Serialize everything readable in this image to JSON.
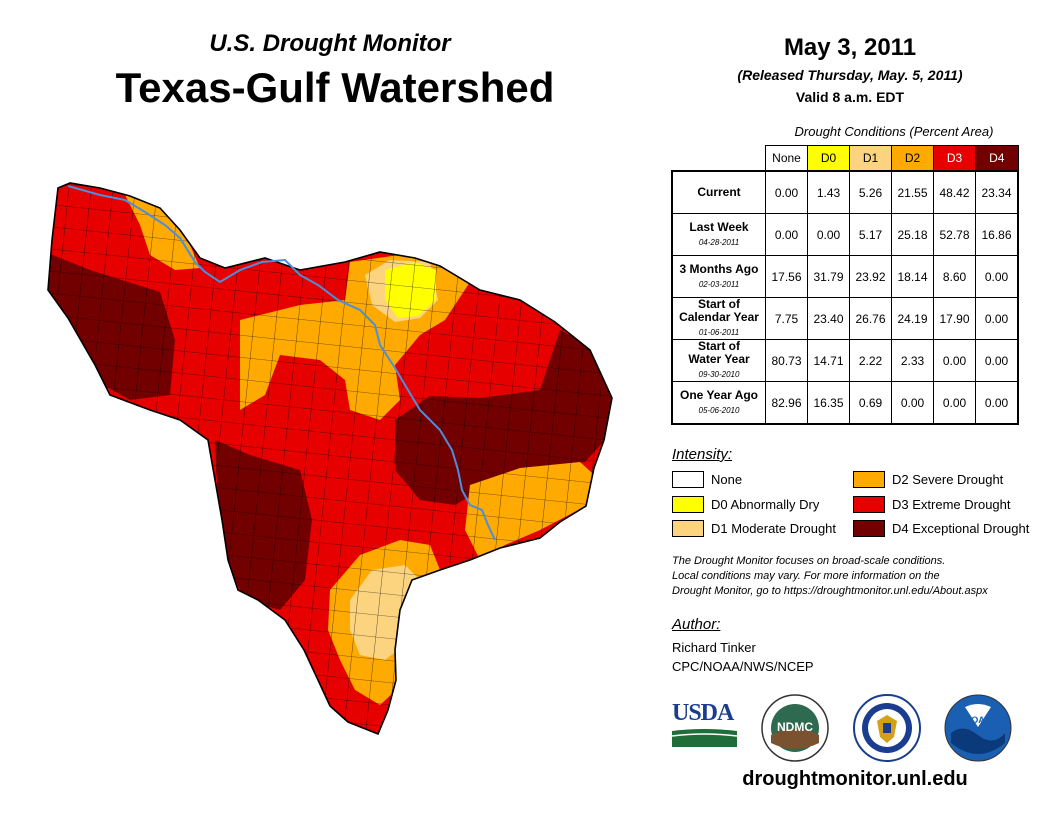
{
  "header": {
    "subtitle": "U.S. Drought Monitor",
    "title": "Texas-Gulf Watershed",
    "date": "May 3, 2011",
    "released": "(Released Thursday, May. 5, 2011)",
    "valid": "Valid 8 a.m. EDT"
  },
  "colors": {
    "none": "#ffffff",
    "d0": "#ffff00",
    "d1": "#fcd37f",
    "d2": "#ffaa00",
    "d3": "#e60000",
    "d4": "#730000",
    "river": "#4b8fdc"
  },
  "table": {
    "caption": "Drought Conditions (Percent Area)",
    "columns": [
      "None",
      "D0",
      "D1",
      "D2",
      "D3",
      "D4"
    ],
    "rows": [
      {
        "label": "Current",
        "label2": "",
        "date": "",
        "values": [
          "0.00",
          "1.43",
          "5.26",
          "21.55",
          "48.42",
          "23.34"
        ]
      },
      {
        "label": "Last Week",
        "label2": "",
        "date": "04-28-2011",
        "values": [
          "0.00",
          "0.00",
          "5.17",
          "25.18",
          "52.78",
          "16.86"
        ]
      },
      {
        "label": "3 Months Ago",
        "label2": "",
        "date": "02-03-2011",
        "values": [
          "17.56",
          "31.79",
          "23.92",
          "18.14",
          "8.60",
          "0.00"
        ]
      },
      {
        "label": "Start of",
        "label2": "Calendar Year",
        "date": "01-06-2011",
        "values": [
          "7.75",
          "23.40",
          "26.76",
          "24.19",
          "17.90",
          "0.00"
        ]
      },
      {
        "label": "Start of",
        "label2": "Water Year",
        "date": "09-30-2010",
        "values": [
          "80.73",
          "14.71",
          "2.22",
          "2.33",
          "0.00",
          "0.00"
        ]
      },
      {
        "label": "One Year Ago",
        "label2": "",
        "date": "05-06-2010",
        "values": [
          "82.96",
          "16.35",
          "0.69",
          "0.00",
          "0.00",
          "0.00"
        ]
      }
    ]
  },
  "legend": {
    "title": "Intensity:",
    "items": [
      {
        "label": "None"
      },
      {
        "label": "D0 Abnormally Dry"
      },
      {
        "label": "D1 Moderate Drought"
      },
      {
        "label": "D2 Severe Drought"
      },
      {
        "label": "D3 Extreme Drought"
      },
      {
        "label": "D4 Exceptional Drought"
      }
    ]
  },
  "note": {
    "line1": "The Drought Monitor focuses on broad-scale conditions.",
    "line2": "Local conditions may vary. For more information on the",
    "line3": "Drought Monitor, go to https://droughtmonitor.unl.edu/About.aspx"
  },
  "author": {
    "title": "Author:",
    "name": "Richard Tinker",
    "org": "CPC/NOAA/NWS/NCEP"
  },
  "logos": {
    "usda": "USDA",
    "ndmc": "NDMC",
    "noaa": "NOAA"
  },
  "footer": {
    "site": "droughtmonitor.unl.edu"
  }
}
